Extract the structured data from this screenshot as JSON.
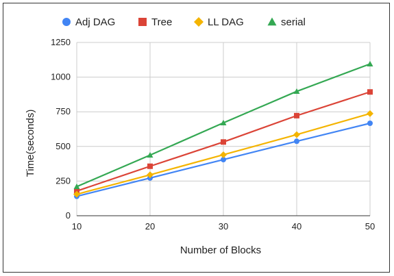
{
  "chart_data": {
    "type": "line",
    "title": "",
    "xlabel": "Number of Blocks",
    "ylabel": "Time(seconds)",
    "x": [
      10,
      20,
      30,
      40,
      50
    ],
    "xlim": [
      10,
      50
    ],
    "ylim": [
      0,
      1250
    ],
    "xticks": [
      "10",
      "20",
      "30",
      "40",
      "50"
    ],
    "yticks": [
      "0",
      "250",
      "500",
      "750",
      "1000",
      "1250"
    ],
    "ytick_values": [
      0,
      250,
      500,
      750,
      1000,
      1250
    ],
    "grid": "vertical and horizontal",
    "legend_position": "top",
    "series": [
      {
        "name": "Adj DAG",
        "color": "#4285f4",
        "marker": "circle",
        "values": [
          140,
          272,
          405,
          537,
          667
        ]
      },
      {
        "name": "Tree",
        "color": "#db4437",
        "marker": "square",
        "values": [
          178,
          357,
          532,
          722,
          893
        ]
      },
      {
        "name": "LL DAG",
        "color": "#f4b400",
        "marker": "diamond",
        "values": [
          155,
          295,
          440,
          585,
          737
        ]
      },
      {
        "name": "serial",
        "color": "#34a853",
        "marker": "triangle",
        "values": [
          210,
          437,
          670,
          897,
          1095
        ]
      }
    ]
  }
}
